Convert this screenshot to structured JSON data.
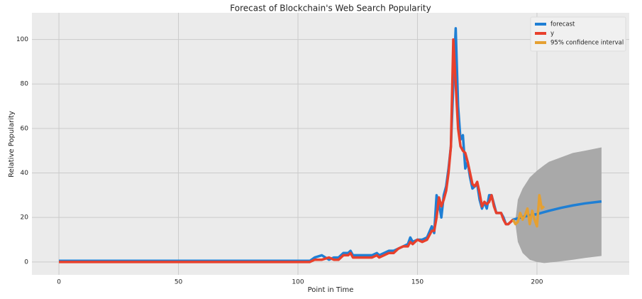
{
  "chart_data": {
    "type": "line",
    "title": "Forecast of Blockchain's Web Search Popularity",
    "x_label": "Point in Time",
    "y_label": "Relative Popularity",
    "xlim": [
      -11.3,
      238.6
    ],
    "ylim": [
      -5.8,
      112
    ],
    "xticks": [
      0,
      50,
      100,
      150,
      200
    ],
    "yticks": [
      0,
      20,
      40,
      60,
      80,
      100
    ],
    "grid": true,
    "legend_position": "upper right",
    "series": [
      {
        "name": "forecast",
        "color": "#1f7fd4",
        "x": [
          0,
          105,
          107,
          110,
          113,
          115,
          117,
          119,
          121,
          122,
          123,
          125,
          127,
          129,
          131,
          133,
          134,
          136,
          138,
          140,
          142,
          144,
          146,
          147,
          148,
          150,
          152,
          154,
          156,
          157,
          158,
          159,
          160,
          161,
          162,
          163,
          164,
          165,
          166,
          167,
          168,
          169,
          170,
          171,
          172,
          173,
          174,
          175,
          176,
          177,
          178,
          179,
          180,
          181,
          182,
          183,
          184,
          185,
          186,
          187,
          188,
          189,
          190,
          195,
          200,
          205,
          210,
          215,
          220,
          227
        ],
        "values": [
          0.5,
          0.5,
          2,
          3,
          1,
          2,
          2,
          4,
          4,
          5,
          3,
          3,
          3,
          3,
          3,
          4,
          3,
          4,
          5,
          5,
          6,
          7,
          8,
          11,
          9,
          10,
          10,
          11,
          16,
          13,
          30,
          26,
          20,
          30,
          34,
          42,
          52,
          80,
          105,
          70,
          55,
          57,
          42,
          45,
          38,
          33,
          34,
          35,
          28,
          24,
          27,
          24,
          30,
          30,
          26,
          22,
          22,
          22,
          20,
          17,
          17,
          18,
          19,
          20.5,
          21.5,
          23,
          24.3,
          25.4,
          26.3,
          27.2
        ]
      },
      {
        "name": "y",
        "color": "#e8402c",
        "x": [
          0,
          105,
          107,
          110,
          113,
          115,
          117,
          119,
          121,
          122,
          123,
          125,
          127,
          129,
          131,
          133,
          134,
          136,
          138,
          140,
          142,
          144,
          146,
          147,
          148,
          150,
          152,
          154,
          156,
          157,
          158,
          159,
          160,
          161,
          162,
          163,
          164,
          165,
          166,
          167,
          168,
          169,
          170,
          171,
          172,
          173,
          174,
          175,
          176,
          177,
          178,
          179,
          180,
          181,
          182,
          183,
          184,
          185,
          186,
          187,
          188,
          189,
          190
        ],
        "values": [
          0,
          0,
          1,
          1,
          2,
          1,
          1,
          3,
          3,
          4,
          2,
          2,
          2,
          2,
          2,
          3,
          2,
          3,
          4,
          4,
          6,
          7,
          7,
          9,
          8,
          10,
          9,
          10,
          14,
          14,
          20,
          29,
          25,
          28,
          32,
          40,
          52,
          100,
          80,
          60,
          52,
          50,
          49,
          45,
          40,
          35,
          34,
          36,
          31,
          25,
          27,
          26,
          27,
          30,
          25,
          22,
          22,
          22,
          19,
          17,
          17,
          18,
          19
        ]
      },
      {
        "name": "95% confidence interval",
        "color": "#e5a032",
        "x": [
          190,
          191,
          192,
          193,
          194,
          195,
          196,
          197,
          198,
          199,
          200,
          201,
          202,
          203
        ],
        "values": [
          19,
          17,
          18,
          22,
          19,
          21,
          24,
          17,
          23,
          19,
          16,
          30,
          24,
          25
        ]
      }
    ],
    "confidence_band": {
      "color": "#a9a9a9",
      "x": [
        191,
        192,
        194,
        197,
        200,
        203,
        205,
        210,
        215,
        220,
        227
      ],
      "upper": [
        19,
        28,
        33,
        38,
        41,
        43.5,
        45,
        47,
        49,
        50,
        51.5
      ],
      "lower": [
        17,
        9,
        4,
        1,
        0,
        -0.5,
        -0.3,
        0.3,
        1,
        1.8,
        2.7
      ]
    }
  }
}
